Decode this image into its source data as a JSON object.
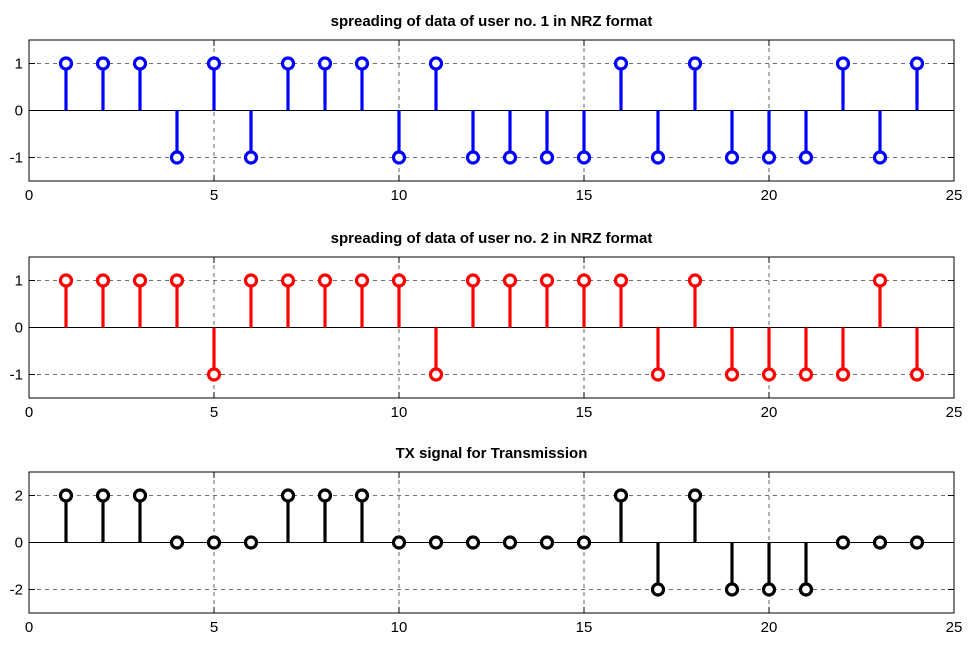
{
  "chart_data": [
    {
      "type": "stem",
      "title": "spreading of data of user no. 1 in NRZ format",
      "color": "#0000ff",
      "marker_fill": "open",
      "xlim": [
        0,
        25
      ],
      "ylim": [
        -1.5,
        1.5
      ],
      "xticks": [
        0,
        5,
        10,
        15,
        20,
        25
      ],
      "yticks": [
        -1,
        0,
        1
      ],
      "grid": true,
      "series": [
        {
          "x": [
            1,
            2,
            3,
            4,
            5,
            6,
            7,
            8,
            9,
            10,
            11,
            12,
            13,
            14,
            15,
            16,
            17,
            18,
            19,
            20,
            21,
            22,
            23,
            24
          ],
          "values": [
            1,
            1,
            1,
            -1,
            1,
            -1,
            1,
            1,
            1,
            -1,
            1,
            -1,
            -1,
            -1,
            -1,
            1,
            -1,
            1,
            -1,
            -1,
            -1,
            1,
            -1,
            1
          ]
        }
      ]
    },
    {
      "type": "stem",
      "title": "spreading of data of user no. 2 in NRZ format",
      "color": "#ff0000",
      "marker_fill": "open",
      "xlim": [
        0,
        25
      ],
      "ylim": [
        -1.5,
        1.5
      ],
      "xticks": [
        0,
        5,
        10,
        15,
        20,
        25
      ],
      "yticks": [
        -1,
        0,
        1
      ],
      "grid": true,
      "series": [
        {
          "x": [
            1,
            2,
            3,
            4,
            5,
            6,
            7,
            8,
            9,
            10,
            11,
            12,
            13,
            14,
            15,
            16,
            17,
            18,
            19,
            20,
            21,
            22,
            23,
            24
          ],
          "values": [
            1,
            1,
            1,
            1,
            -1,
            1,
            1,
            1,
            1,
            1,
            -1,
            1,
            1,
            1,
            1,
            1,
            -1,
            1,
            -1,
            -1,
            -1,
            -1,
            1,
            -1
          ]
        }
      ]
    },
    {
      "type": "stem",
      "title": "TX signal for Transmission",
      "color": "#000000",
      "marker_fill": "open",
      "xlim": [
        0,
        25
      ],
      "ylim": [
        -3,
        3
      ],
      "xticks": [
        0,
        5,
        10,
        15,
        20,
        25
      ],
      "yticks": [
        -2,
        0,
        2
      ],
      "grid": true,
      "series": [
        {
          "x": [
            1,
            2,
            3,
            4,
            5,
            6,
            7,
            8,
            9,
            10,
            11,
            12,
            13,
            14,
            15,
            16,
            17,
            18,
            19,
            20,
            21,
            22,
            23,
            24
          ],
          "values": [
            2,
            2,
            2,
            0,
            0,
            0,
            2,
            2,
            2,
            0,
            0,
            0,
            0,
            0,
            0,
            2,
            -2,
            2,
            -2,
            -2,
            -2,
            0,
            0,
            0
          ]
        }
      ]
    }
  ]
}
